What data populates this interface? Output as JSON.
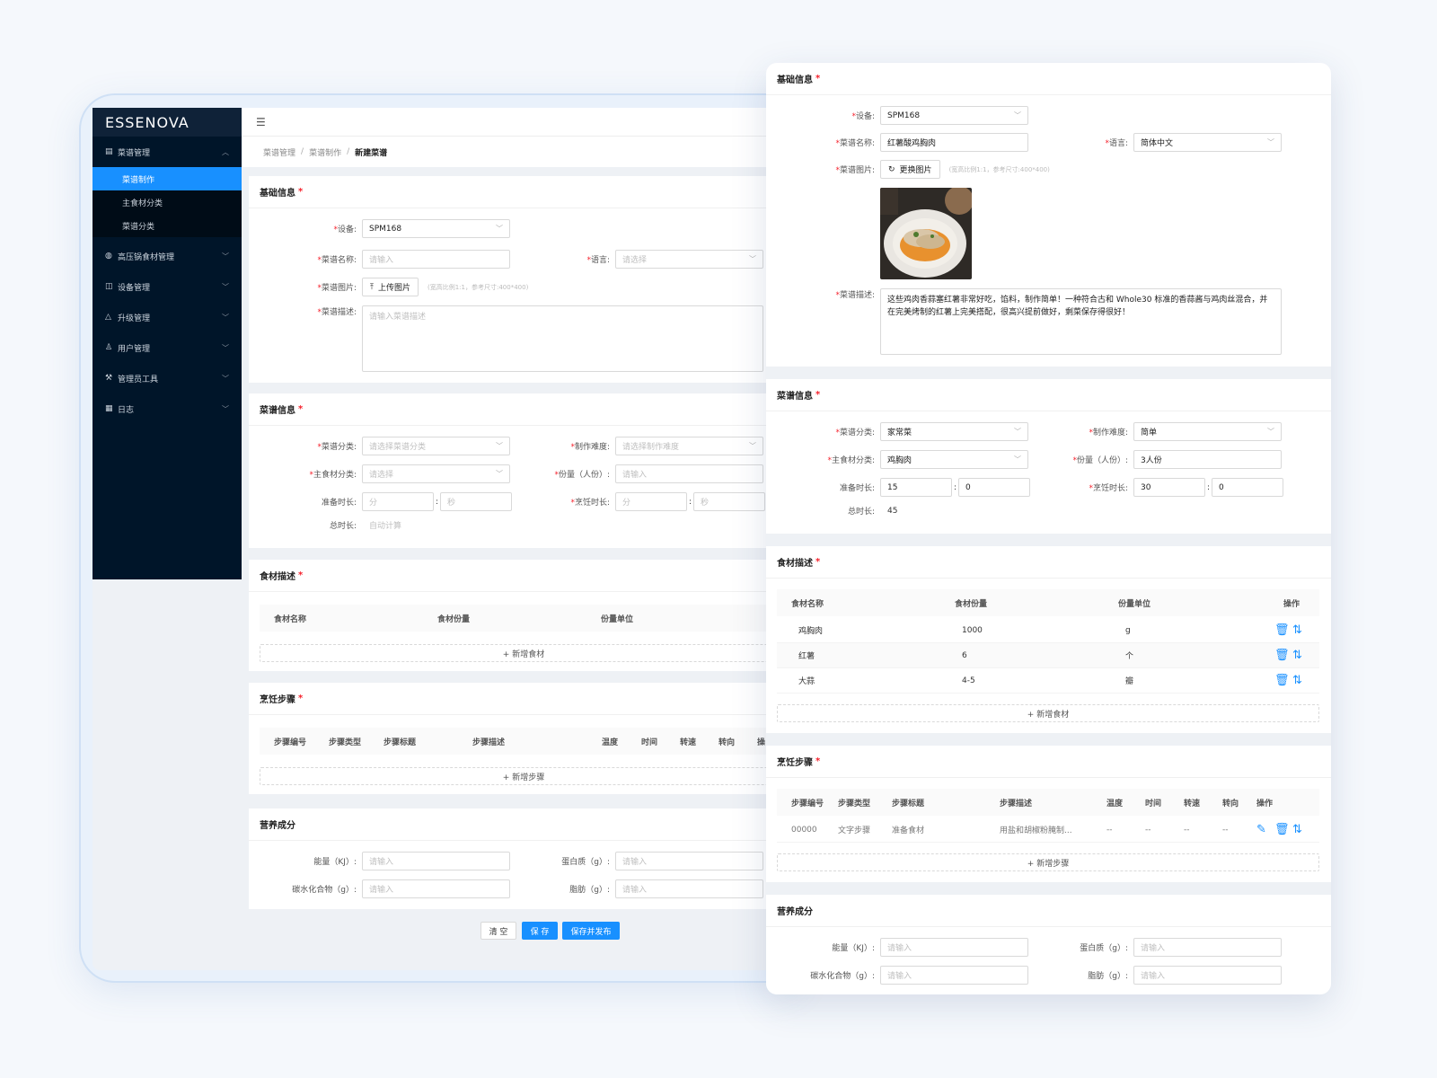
{
  "app": {
    "logo_text": "ESSENOVA"
  },
  "sidebar": {
    "menu_main": "菜谱管理",
    "subs": [
      "菜谱制作",
      "主食材分类",
      "菜谱分类"
    ],
    "items": [
      {
        "label": "高压锅食材管理",
        "icon": "pot-icon"
      },
      {
        "label": "设备管理",
        "icon": "device-icon"
      },
      {
        "label": "升级管理",
        "icon": "upgrade-icon"
      },
      {
        "label": "用户管理",
        "icon": "user-icon"
      },
      {
        "label": "管理员工具",
        "icon": "tool-icon"
      },
      {
        "label": "日志",
        "icon": "log-icon"
      }
    ]
  },
  "breadcrumb": [
    "菜谱管理",
    "菜谱制作",
    "新建菜谱"
  ],
  "left": {
    "basic": {
      "title": "基础信息",
      "device_label": "设备:",
      "device_value": "SPM168",
      "name_label": "菜谱名称:",
      "name_ph": "请输入",
      "lang_label": "语言:",
      "lang_ph": "请选择",
      "image_label": "菜谱图片:",
      "upload_btn": "上传图片",
      "image_hint": "(宽高比例1:1，参考尺寸:400*400)",
      "desc_label": "菜谱描述:",
      "desc_ph": "请输入菜谱描述"
    },
    "recipe": {
      "title": "菜谱信息",
      "cat_label": "菜谱分类:",
      "cat_ph": "请选择菜谱分类",
      "diff_label": "制作难度:",
      "diff_ph": "请选择制作难度",
      "main_label": "主食材分类:",
      "main_ph": "请选择",
      "serv_label": "份量（人份）:",
      "serv_ph": "请输入",
      "prep_label": "准备时长:",
      "cook_label": "烹饪时长:",
      "min_ph": "分",
      "sec_ph": "秒",
      "total_label": "总时长:",
      "total_ph": "自动计算"
    },
    "ingredients": {
      "title": "食材描述",
      "headers": [
        "食材名称",
        "食材份量",
        "份量单位"
      ],
      "add": "+ 新增食材"
    },
    "steps": {
      "title": "烹饪步骤",
      "headers": [
        "步骤编号",
        "步骤类型",
        "步骤标题",
        "步骤描述",
        "温度",
        "时间",
        "转速",
        "转向",
        "操"
      ],
      "add": "+ 新增步骤"
    },
    "nutrition": {
      "title": "营养成分",
      "energy": "能量（KJ）:",
      "protein": "蛋白质（g）:",
      "carb": "碳水化合物（g）:",
      "fat": "脂肪（g）:",
      "ph": "请输入"
    },
    "footer": {
      "clear": "清 空",
      "save": "保 存",
      "publish": "保存并发布"
    }
  },
  "right": {
    "basic": {
      "title": "基础信息",
      "device_label": "设备:",
      "device_value": "SPM168",
      "name_label": "菜谱名称:",
      "name_value": "红薯酸鸡胸肉",
      "lang_label": "语言:",
      "lang_value": "简体中文",
      "image_label": "菜谱图片:",
      "change_btn": "更换图片",
      "image_hint": "(宽高比例1:1，参考尺寸:400*400)",
      "desc_label": "菜谱描述:",
      "desc_value": "这些鸡肉香蒜塞红薯非常好吃，馅料，制作简单！一种符合古和 Whole30 标准的香蒜酱与鸡肉丝混合，并在完美烤制的红薯上完美搭配，很高兴提前做好，剩菜保存得很好！"
    },
    "recipe": {
      "title": "菜谱信息",
      "cat_label": "菜谱分类:",
      "cat_value": "家常菜",
      "diff_label": "制作难度:",
      "diff_value": "简单",
      "main_label": "主食材分类:",
      "main_value": "鸡胸肉",
      "serv_label": "份量（人份）:",
      "serv_value": "3人份",
      "prep_label": "准备时长:",
      "prep_min": "15",
      "prep_sec": "0",
      "cook_label": "烹饪时长:",
      "cook_min": "30",
      "cook_sec": "0",
      "total_label": "总时长:",
      "total_value": "45"
    },
    "ingredients": {
      "title": "食材描述",
      "headers": [
        "食材名称",
        "食材份量",
        "份量单位",
        "操作"
      ],
      "rows": [
        {
          "name": "鸡胸肉",
          "amount": "1000",
          "unit": "g"
        },
        {
          "name": "红薯",
          "amount": "6",
          "unit": "个"
        },
        {
          "name": "大蒜",
          "amount": "4-5",
          "unit": "瓣"
        }
      ],
      "add": "+ 新增食材"
    },
    "steps": {
      "title": "烹饪步骤",
      "headers": [
        "步骤编号",
        "步骤类型",
        "步骤标题",
        "步骤描述",
        "温度",
        "时间",
        "转速",
        "转向",
        "操作"
      ],
      "rows": [
        {
          "no": "00000",
          "type": "文字步骤",
          "title": "准备食材",
          "desc": "用盐和胡椒粉腌制...",
          "temp": "--",
          "time": "--",
          "speed": "--",
          "dir": "--"
        }
      ],
      "add": "+ 新增步骤"
    },
    "nutrition": {
      "title": "营养成分",
      "energy": "能量（KJ）:",
      "protein": "蛋白质（g）:",
      "carb": "碳水化合物（g）:",
      "fat": "脂肪（g）:",
      "ph": "请输入"
    }
  },
  "colors": {
    "primary": "#1890ff",
    "sidebar": "#001529",
    "required": "#f5222d"
  }
}
